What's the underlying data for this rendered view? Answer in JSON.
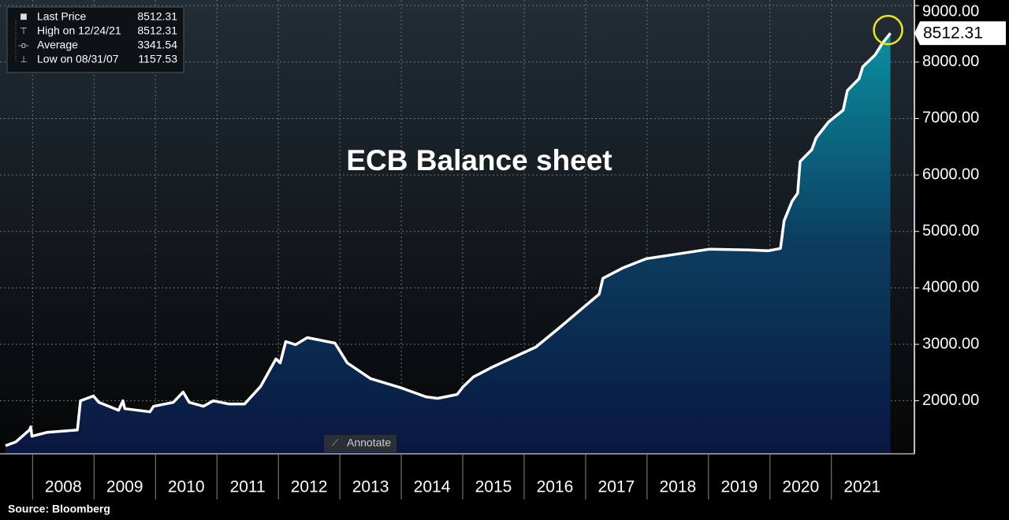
{
  "chart_data": {
    "type": "area",
    "title": "ECB Balance sheet",
    "source": "Source: Bloomberg",
    "annotate_button": "Annotate",
    "legend": [
      {
        "name": "Last Price",
        "value": 8512.31
      },
      {
        "name": "High on 12/24/21",
        "value": 8512.31
      },
      {
        "name": "Average",
        "value": 3341.54
      },
      {
        "name": "Low on 08/31/07",
        "value": 1157.53
      }
    ],
    "color": "#ffffff",
    "xlim": [
      2007.47,
      2022.35
    ],
    "ylim": [
      1060,
      9100
    ],
    "xticks": [
      2008,
      2009,
      2010,
      2011,
      2012,
      2013,
      2014,
      2015,
      2016,
      2017,
      2018,
      2019,
      2020,
      2021
    ],
    "yticks": [
      {
        "value": 2000,
        "label": "2000.00"
      },
      {
        "value": 3000,
        "label": "3000.00"
      },
      {
        "value": 4000,
        "label": "4000.00"
      },
      {
        "value": 5000,
        "label": "5000.00"
      },
      {
        "value": 6000,
        "label": "6000.00"
      },
      {
        "value": 7000,
        "label": "7000.00"
      },
      {
        "value": 8000,
        "label": "8000.00"
      },
      {
        "value": 9000,
        "label": "9000.00"
      }
    ],
    "grid": true,
    "series": [
      {
        "name": "ECB Balance sheet",
        "x": [
          2007.56,
          2007.73,
          2007.95,
          2007.97,
          2007.99,
          2008.24,
          2008.73,
          2008.78,
          2008.99,
          2009.08,
          2009.4,
          2009.47,
          2009.5,
          2009.91,
          2009.97,
          2010.29,
          2010.45,
          2010.55,
          2010.78,
          2010.94,
          2011.19,
          2011.45,
          2011.71,
          2011.96,
          2012.03,
          2012.12,
          2012.28,
          2012.47,
          2012.92,
          2013.12,
          2013.5,
          2014.01,
          2014.4,
          2014.59,
          2014.91,
          2015.01,
          2015.17,
          2015.49,
          2016.19,
          2016.58,
          2016.96,
          2017.22,
          2017.28,
          2017.6,
          2017.99,
          2018.5,
          2019.01,
          2019.65,
          2019.97,
          2020.17,
          2020.23,
          2020.36,
          2020.45,
          2020.49,
          2020.68,
          2020.75,
          2020.95,
          2021.19,
          2021.26,
          2021.45,
          2021.51,
          2021.71,
          2021.83,
          2021.96
        ],
        "values": [
          1203,
          1273,
          1483,
          1538,
          1371,
          1441,
          1483,
          2000,
          2084,
          1972,
          1832,
          2000,
          1860,
          1804,
          1902,
          1972,
          2154,
          1972,
          1902,
          2000,
          1944,
          1944,
          2252,
          2741,
          2671,
          3049,
          2993,
          3119,
          3021,
          2671,
          2392,
          2224,
          2070,
          2042,
          2112,
          2252,
          2420,
          2601,
          2951,
          3301,
          3650,
          3888,
          4168,
          4350,
          4517,
          4601,
          4685,
          4671,
          4657,
          4699,
          5189,
          5538,
          5678,
          6238,
          6448,
          6657,
          6937,
          7147,
          7497,
          7706,
          7916,
          8126,
          8336,
          8512.31
        ]
      }
    ]
  }
}
